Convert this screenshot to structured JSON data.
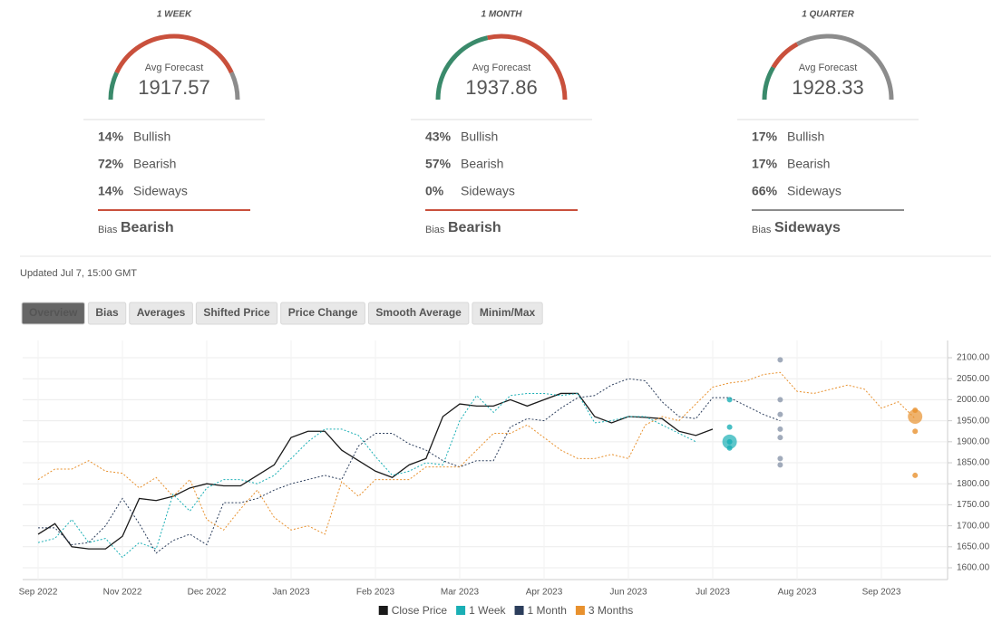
{
  "gauges": [
    {
      "period": "1 WEEK",
      "caption": "Avg Forecast",
      "value": "1917.57",
      "shares": [
        {
          "name": "Bullish",
          "value": 14,
          "label": "14%",
          "color": "#3a8a6b"
        },
        {
          "name": "Bearish",
          "value": 72,
          "label": "72%",
          "color": "#c9503c"
        },
        {
          "name": "Sideways",
          "value": 14,
          "label": "14%",
          "color": "#8c8c8c"
        }
      ],
      "bias_caption": "Bias",
      "bias": "Bearish",
      "bias_color": "#c9503c"
    },
    {
      "period": "1 MONTH",
      "caption": "Avg Forecast",
      "value": "1937.86",
      "shares": [
        {
          "name": "Bullish",
          "value": 43,
          "label": "43%",
          "color": "#3a8a6b"
        },
        {
          "name": "Bearish",
          "value": 57,
          "label": "57%",
          "color": "#c9503c"
        },
        {
          "name": "Sideways",
          "value": 0,
          "label": "0%",
          "color": "#8c8c8c"
        }
      ],
      "bias_caption": "Bias",
      "bias": "Bearish",
      "bias_color": "#c9503c"
    },
    {
      "period": "1 QUARTER",
      "caption": "Avg Forecast",
      "value": "1928.33",
      "shares": [
        {
          "name": "Bullish",
          "value": 17,
          "label": "17%",
          "color": "#3a8a6b"
        },
        {
          "name": "Bearish",
          "value": 17,
          "label": "17%",
          "color": "#c9503c"
        },
        {
          "name": "Sideways",
          "value": 66,
          "label": "66%",
          "color": "#8c8c8c"
        }
      ],
      "bias_caption": "Bias",
      "bias": "Sideways",
      "bias_color": "#8c8c8c"
    }
  ],
  "updated": "Updated Jul 7, 15:00 GMT",
  "tabs": [
    "Overview",
    "Bias",
    "Averages",
    "Shifted Price",
    "Price Change",
    "Smooth Average",
    "Minim/Max"
  ],
  "active_tab": 0,
  "chart_data": {
    "type": "line",
    "categories": [
      "Sep 2022",
      null,
      null,
      null,
      null,
      "Nov 2022",
      null,
      null,
      null,
      null,
      "Dec 2022",
      null,
      null,
      null,
      null,
      "Jan 2023",
      null,
      null,
      null,
      null,
      "Feb 2023",
      null,
      null,
      null,
      null,
      "Mar 2023",
      null,
      null,
      null,
      null,
      "Apr 2023",
      null,
      null,
      null,
      null,
      "Jun 2023",
      null,
      null,
      null,
      null,
      "Jul 2023",
      null,
      null,
      null,
      null,
      "Aug 2023",
      null,
      null,
      null,
      null,
      "Sep 2023",
      null,
      null,
      null
    ],
    "series": [
      {
        "name": "Close Price",
        "color": "#1a1a1a",
        "dashed": false,
        "values": [
          1680,
          1705,
          1650,
          1645,
          1645,
          1675,
          1765,
          1760,
          1770,
          1790,
          1800,
          1795,
          1795,
          1820,
          1845,
          1910,
          1925,
          1925,
          1880,
          1855,
          1830,
          1815,
          1845,
          1860,
          1960,
          1990,
          1985,
          1985,
          2000,
          1985,
          2000,
          2015,
          2015,
          1960,
          1945,
          1960,
          1958,
          1955,
          1925,
          1915,
          1930,
          null,
          null,
          null,
          null,
          null,
          null,
          null,
          null,
          null,
          null,
          null,
          null,
          null
        ]
      },
      {
        "name": "1 Week",
        "color": "#1aafb5",
        "dashed": true,
        "values": [
          1660,
          1670,
          1715,
          1660,
          1670,
          1625,
          1660,
          1645,
          1775,
          1735,
          1790,
          1810,
          1810,
          1800,
          1820,
          1860,
          1900,
          1930,
          1930,
          1915,
          1865,
          1820,
          1830,
          1850,
          1845,
          1950,
          2010,
          1970,
          2010,
          2015,
          2015,
          2010,
          2015,
          1945,
          1950,
          1960,
          1960,
          1940,
          1920,
          1900,
          null,
          null,
          null,
          null,
          null,
          null,
          null,
          null,
          null,
          null,
          null,
          null,
          null,
          null
        ]
      },
      {
        "name": "1 Month",
        "color": "#2c3e5c",
        "dashed": true,
        "values": [
          1695,
          1695,
          1655,
          1660,
          1700,
          1765,
          1705,
          1635,
          1665,
          1680,
          1655,
          1755,
          1755,
          1765,
          1785,
          1800,
          1810,
          1820,
          1810,
          1890,
          1920,
          1920,
          1895,
          1880,
          1855,
          1840,
          1855,
          1855,
          1935,
          1955,
          1950,
          1980,
          2005,
          2010,
          2035,
          2050,
          2045,
          1995,
          1960,
          1955,
          2005,
          2005,
          1985,
          1965,
          1950,
          null,
          null,
          null,
          null,
          null,
          null,
          null,
          null,
          null
        ]
      },
      {
        "name": "3 Months",
        "color": "#e8912e",
        "dashed": true,
        "values": [
          1810,
          1835,
          1835,
          1855,
          1830,
          1825,
          1790,
          1815,
          1770,
          1810,
          1715,
          1690,
          1740,
          1785,
          1720,
          1690,
          1700,
          1680,
          1805,
          1770,
          1810,
          1810,
          1810,
          1840,
          1840,
          1840,
          1880,
          1920,
          1920,
          1940,
          1910,
          1880,
          1860,
          1860,
          1870,
          1860,
          1940,
          1960,
          1950,
          1990,
          2030,
          2040,
          2045,
          2060,
          2065,
          2020,
          2015,
          2025,
          2035,
          2025,
          1980,
          1995,
          1955,
          null
        ]
      }
    ],
    "forecasts": [
      {
        "series": 1,
        "x": 41,
        "avg": 1900,
        "values": [
          2000,
          1935,
          1885,
          1900
        ]
      },
      {
        "series": 2,
        "x": 44,
        "avg": null,
        "values": [
          2095,
          2000,
          1965,
          1930,
          1910,
          1860,
          1845
        ]
      },
      {
        "series": 3,
        "x": 52,
        "avg": 1960,
        "values": [
          1975,
          1925,
          1820
        ]
      }
    ],
    "ylim": [
      1572,
      2141
    ],
    "yticks": [
      {
        "value": 1600,
        "label": "1600.00"
      },
      {
        "value": 1650,
        "label": "1650.00"
      },
      {
        "value": 1700,
        "label": "1700.00"
      },
      {
        "value": 1750,
        "label": "1750.00"
      },
      {
        "value": 1800,
        "label": "1800.00"
      },
      {
        "value": 1850,
        "label": "1850.00"
      },
      {
        "value": 1900,
        "label": "1900.00"
      },
      {
        "value": 1950,
        "label": "1950.00"
      },
      {
        "value": 2000,
        "label": "2000.00"
      },
      {
        "value": 2050,
        "label": "2050.00"
      },
      {
        "value": 2100,
        "label": "2100.00"
      }
    ],
    "grid": true
  }
}
